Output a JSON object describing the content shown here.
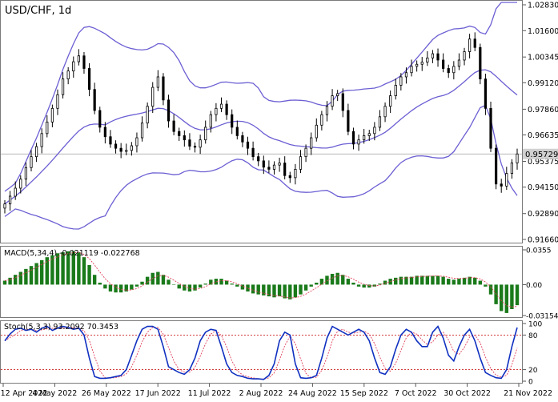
{
  "title": "USD/CHF, 1d",
  "colors": {
    "background": "#ffffff",
    "candle": "#000000",
    "bollinger": "#6b5fd3",
    "macd_bar": "#1a7a1a",
    "macd_signal": "#e0405a",
    "stoch_main": "#1030c0",
    "stoch_signal": "#e0405a",
    "level_line": "#cc2222",
    "grid": "#a0a0a0",
    "price_tag_bg": "#d0d0d0"
  },
  "price_axis": {
    "ticks": [
      "1.02830",
      "1.01600",
      "1.00345",
      "0.99120",
      "0.97860",
      "0.96635",
      "0.95375",
      "0.94150",
      "0.92890",
      "0.91660"
    ],
    "current_price_label": "0.95729",
    "current_price": 0.95729
  },
  "macd": {
    "label": "MACD(5,34,4) -0.021119 -0.022768",
    "ticks": [
      "0.0355",
      "0.00",
      "-0.031542"
    ]
  },
  "stochastic": {
    "label": "Stoch(5,3,3) 93.2092 70.3453",
    "ticks": [
      "100",
      "80",
      "20",
      "0"
    ],
    "levels": [
      80,
      20
    ]
  },
  "time_axis": {
    "labels": [
      "12 Apr 2022",
      "4 May 2022",
      "26 May 2022",
      "17 Jun 2022",
      "11 Jul 2022",
      "2 Aug 2022",
      "24 Aug 2022",
      "15 Sep 2022",
      "7 Oct 2022",
      "30 Oct 2022",
      "21 Nov 2022"
    ]
  },
  "chart_data": {
    "type": "line",
    "title": "USD/CHF, 1d",
    "xlabel": "",
    "ylabel": "",
    "x_range": [
      "12 Apr 2022",
      "21 Nov 2022"
    ],
    "ylim": [
      0.9166,
      1.0283
    ],
    "series": [
      {
        "values": [
          0.9335,
          0.9372,
          0.941,
          0.9453,
          0.9508,
          0.956,
          0.9608,
          0.967,
          0.9725,
          0.979,
          0.9855,
          0.993,
          0.9968,
          1.0012,
          1.004,
          0.998,
          0.988,
          0.978,
          0.97,
          0.9655,
          0.962,
          0.96,
          0.9585,
          0.959,
          0.9612,
          0.965,
          0.972,
          0.98,
          0.989,
          0.994,
          0.983,
          0.973,
          0.968,
          0.966,
          0.964,
          0.961,
          0.9605,
          0.964,
          0.97,
          0.976,
          0.979,
          0.981,
          0.976,
          0.97,
          0.966,
          0.963,
          0.96,
          0.956,
          0.954,
          0.951,
          0.95,
          0.952,
          0.953,
          0.947,
          0.946,
          0.95,
          0.956,
          0.96,
          0.965,
          0.971,
          0.976,
          0.98,
          0.985,
          0.986,
          0.978,
          0.968,
          0.962,
          0.964,
          0.966,
          0.967,
          0.97,
          0.975,
          0.98,
          0.985,
          0.99,
          0.994,
          0.996,
          0.999,
          1.0,
          1.001,
          1.003,
          1.005,
          1.002,
          0.998,
          0.996,
          0.999,
          1.002,
          1.006,
          1.012,
          1.008,
          0.993,
          0.979,
          0.96,
          0.943,
          0.942,
          0.948,
          0.953,
          0.9573
        ]
      }
    ],
    "macd_histogram": [
      0.004,
      0.007,
      0.01,
      0.013,
      0.016,
      0.019,
      0.022,
      0.025,
      0.028,
      0.03,
      0.032,
      0.033,
      0.034,
      0.034,
      0.033,
      0.028,
      0.02,
      0.01,
      0.002,
      -0.004,
      -0.007,
      -0.008,
      -0.008,
      -0.007,
      -0.005,
      -0.002,
      0.003,
      0.008,
      0.012,
      0.013,
      0.01,
      0.005,
      0.0,
      -0.004,
      -0.006,
      -0.007,
      -0.006,
      -0.003,
      0.001,
      0.005,
      0.006,
      0.006,
      0.004,
      0.001,
      -0.002,
      -0.005,
      -0.007,
      -0.009,
      -0.01,
      -0.011,
      -0.012,
      -0.013,
      -0.012,
      -0.014,
      -0.015,
      -0.013,
      -0.01,
      -0.006,
      -0.002,
      0.002,
      0.006,
      0.009,
      0.011,
      0.012,
      0.01,
      0.006,
      0.002,
      -0.002,
      -0.003,
      -0.003,
      -0.002,
      0.001,
      0.004,
      0.006,
      0.007,
      0.008,
      0.008,
      0.008,
      0.009,
      0.009,
      0.009,
      0.009,
      0.009,
      0.008,
      0.006,
      0.005,
      0.006,
      0.007,
      0.008,
      0.007,
      0.004,
      -0.002,
      -0.01,
      -0.02,
      -0.027,
      -0.029,
      -0.025,
      -0.021
    ],
    "stoch_main": [
      70,
      82,
      90,
      92,
      88,
      90,
      85,
      92,
      95,
      88,
      92,
      95,
      93,
      90,
      92,
      80,
      40,
      8,
      5,
      5,
      6,
      8,
      10,
      20,
      45,
      70,
      90,
      95,
      95,
      90,
      60,
      25,
      20,
      15,
      12,
      20,
      40,
      70,
      85,
      90,
      88,
      60,
      30,
      15,
      10,
      8,
      5,
      4,
      4,
      3,
      10,
      30,
      70,
      85,
      80,
      30,
      6,
      5,
      6,
      10,
      40,
      75,
      95,
      90,
      85,
      80,
      85,
      90,
      85,
      70,
      40,
      15,
      12,
      25,
      55,
      80,
      90,
      85,
      70,
      60,
      60,
      85,
      95,
      75,
      45,
      35,
      60,
      80,
      90,
      70,
      40,
      15,
      10,
      6,
      5,
      20,
      60,
      93
    ]
  }
}
